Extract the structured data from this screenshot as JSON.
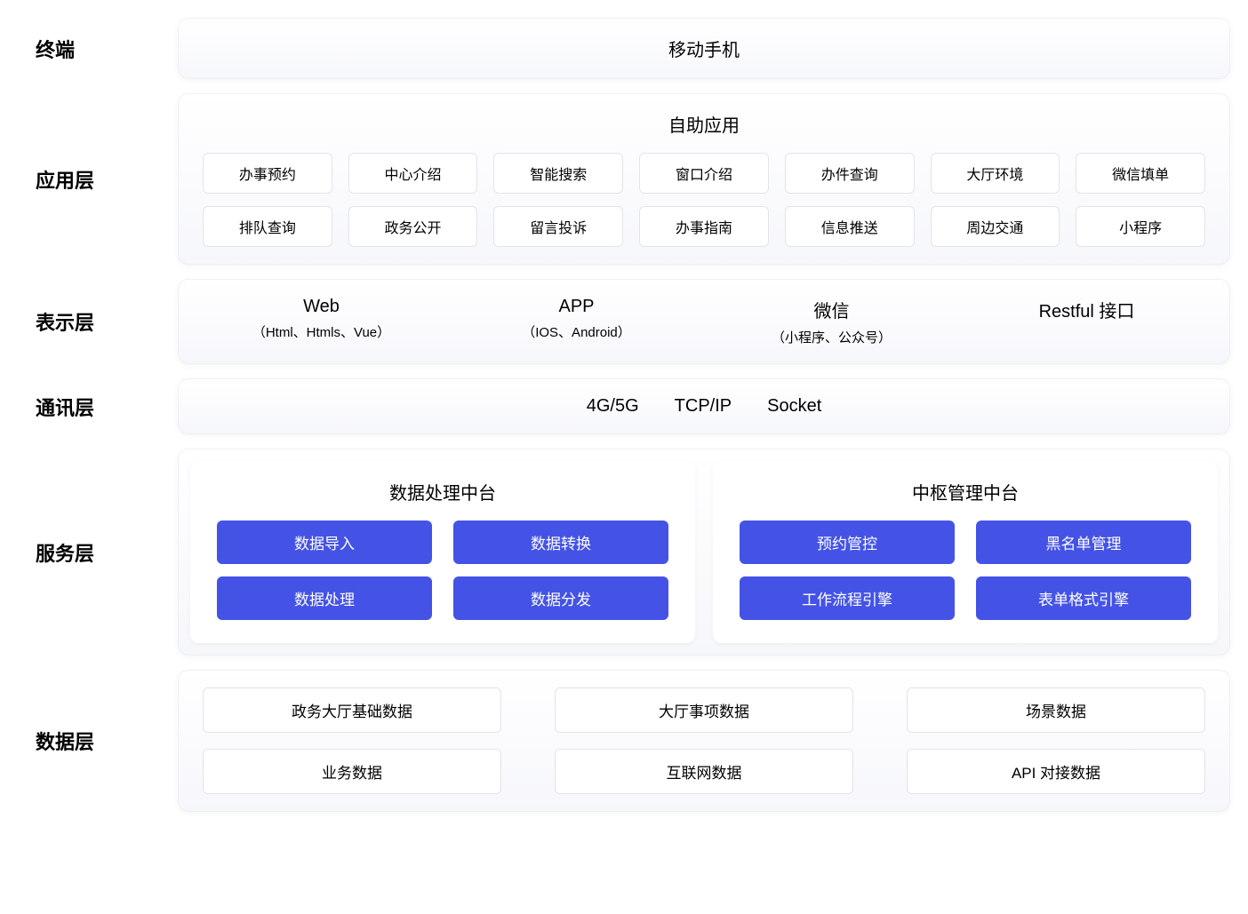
{
  "type": "layered-architecture-diagram",
  "colors": {
    "background": "#ffffff",
    "panel_gradient_top": "#ffffff",
    "panel_gradient_bottom": "#f6f7fb",
    "chip_bg": "#ffffff",
    "chip_border": "#e2e4ec",
    "blue_chip_bg": "#4453e6",
    "blue_chip_text": "#ffffff",
    "text": "#000000"
  },
  "layers": {
    "terminal": {
      "label": "终端",
      "content": "移动手机"
    },
    "application": {
      "label": "应用层",
      "title": "自助应用",
      "items": [
        "办事预约",
        "中心介绍",
        "智能搜索",
        "窗口介绍",
        "办件查询",
        "大厅环境",
        "微信填单",
        "排队查询",
        "政务公开",
        "留言投诉",
        "办事指南",
        "信息推送",
        "周边交通",
        "小程序"
      ]
    },
    "presentation": {
      "label": "表示层",
      "items": [
        {
          "main": "Web",
          "sub": "（Html、Htmls、Vue）"
        },
        {
          "main": "APP",
          "sub": "（IOS、Android）"
        },
        {
          "main": "微信",
          "sub": "（小程序、公众号）"
        },
        {
          "main": "Restful 接口",
          "sub": ""
        }
      ]
    },
    "communication": {
      "label": "通讯层",
      "items": [
        "4G/5G",
        "TCP/IP",
        "Socket"
      ]
    },
    "service": {
      "label": "服务层",
      "panels": [
        {
          "title": "数据处理中台",
          "items": [
            "数据导入",
            "数据转换",
            "数据处理",
            "数据分发"
          ]
        },
        {
          "title": "中枢管理中台",
          "items": [
            "预约管控",
            "黑名单管理",
            "工作流程引擎",
            "表单格式引擎"
          ]
        }
      ]
    },
    "data": {
      "label": "数据层",
      "items": [
        "政务大厅基础数据",
        "大厅事项数据",
        "场景数据",
        "业务数据",
        "互联网数据",
        "API 对接数据"
      ]
    }
  }
}
